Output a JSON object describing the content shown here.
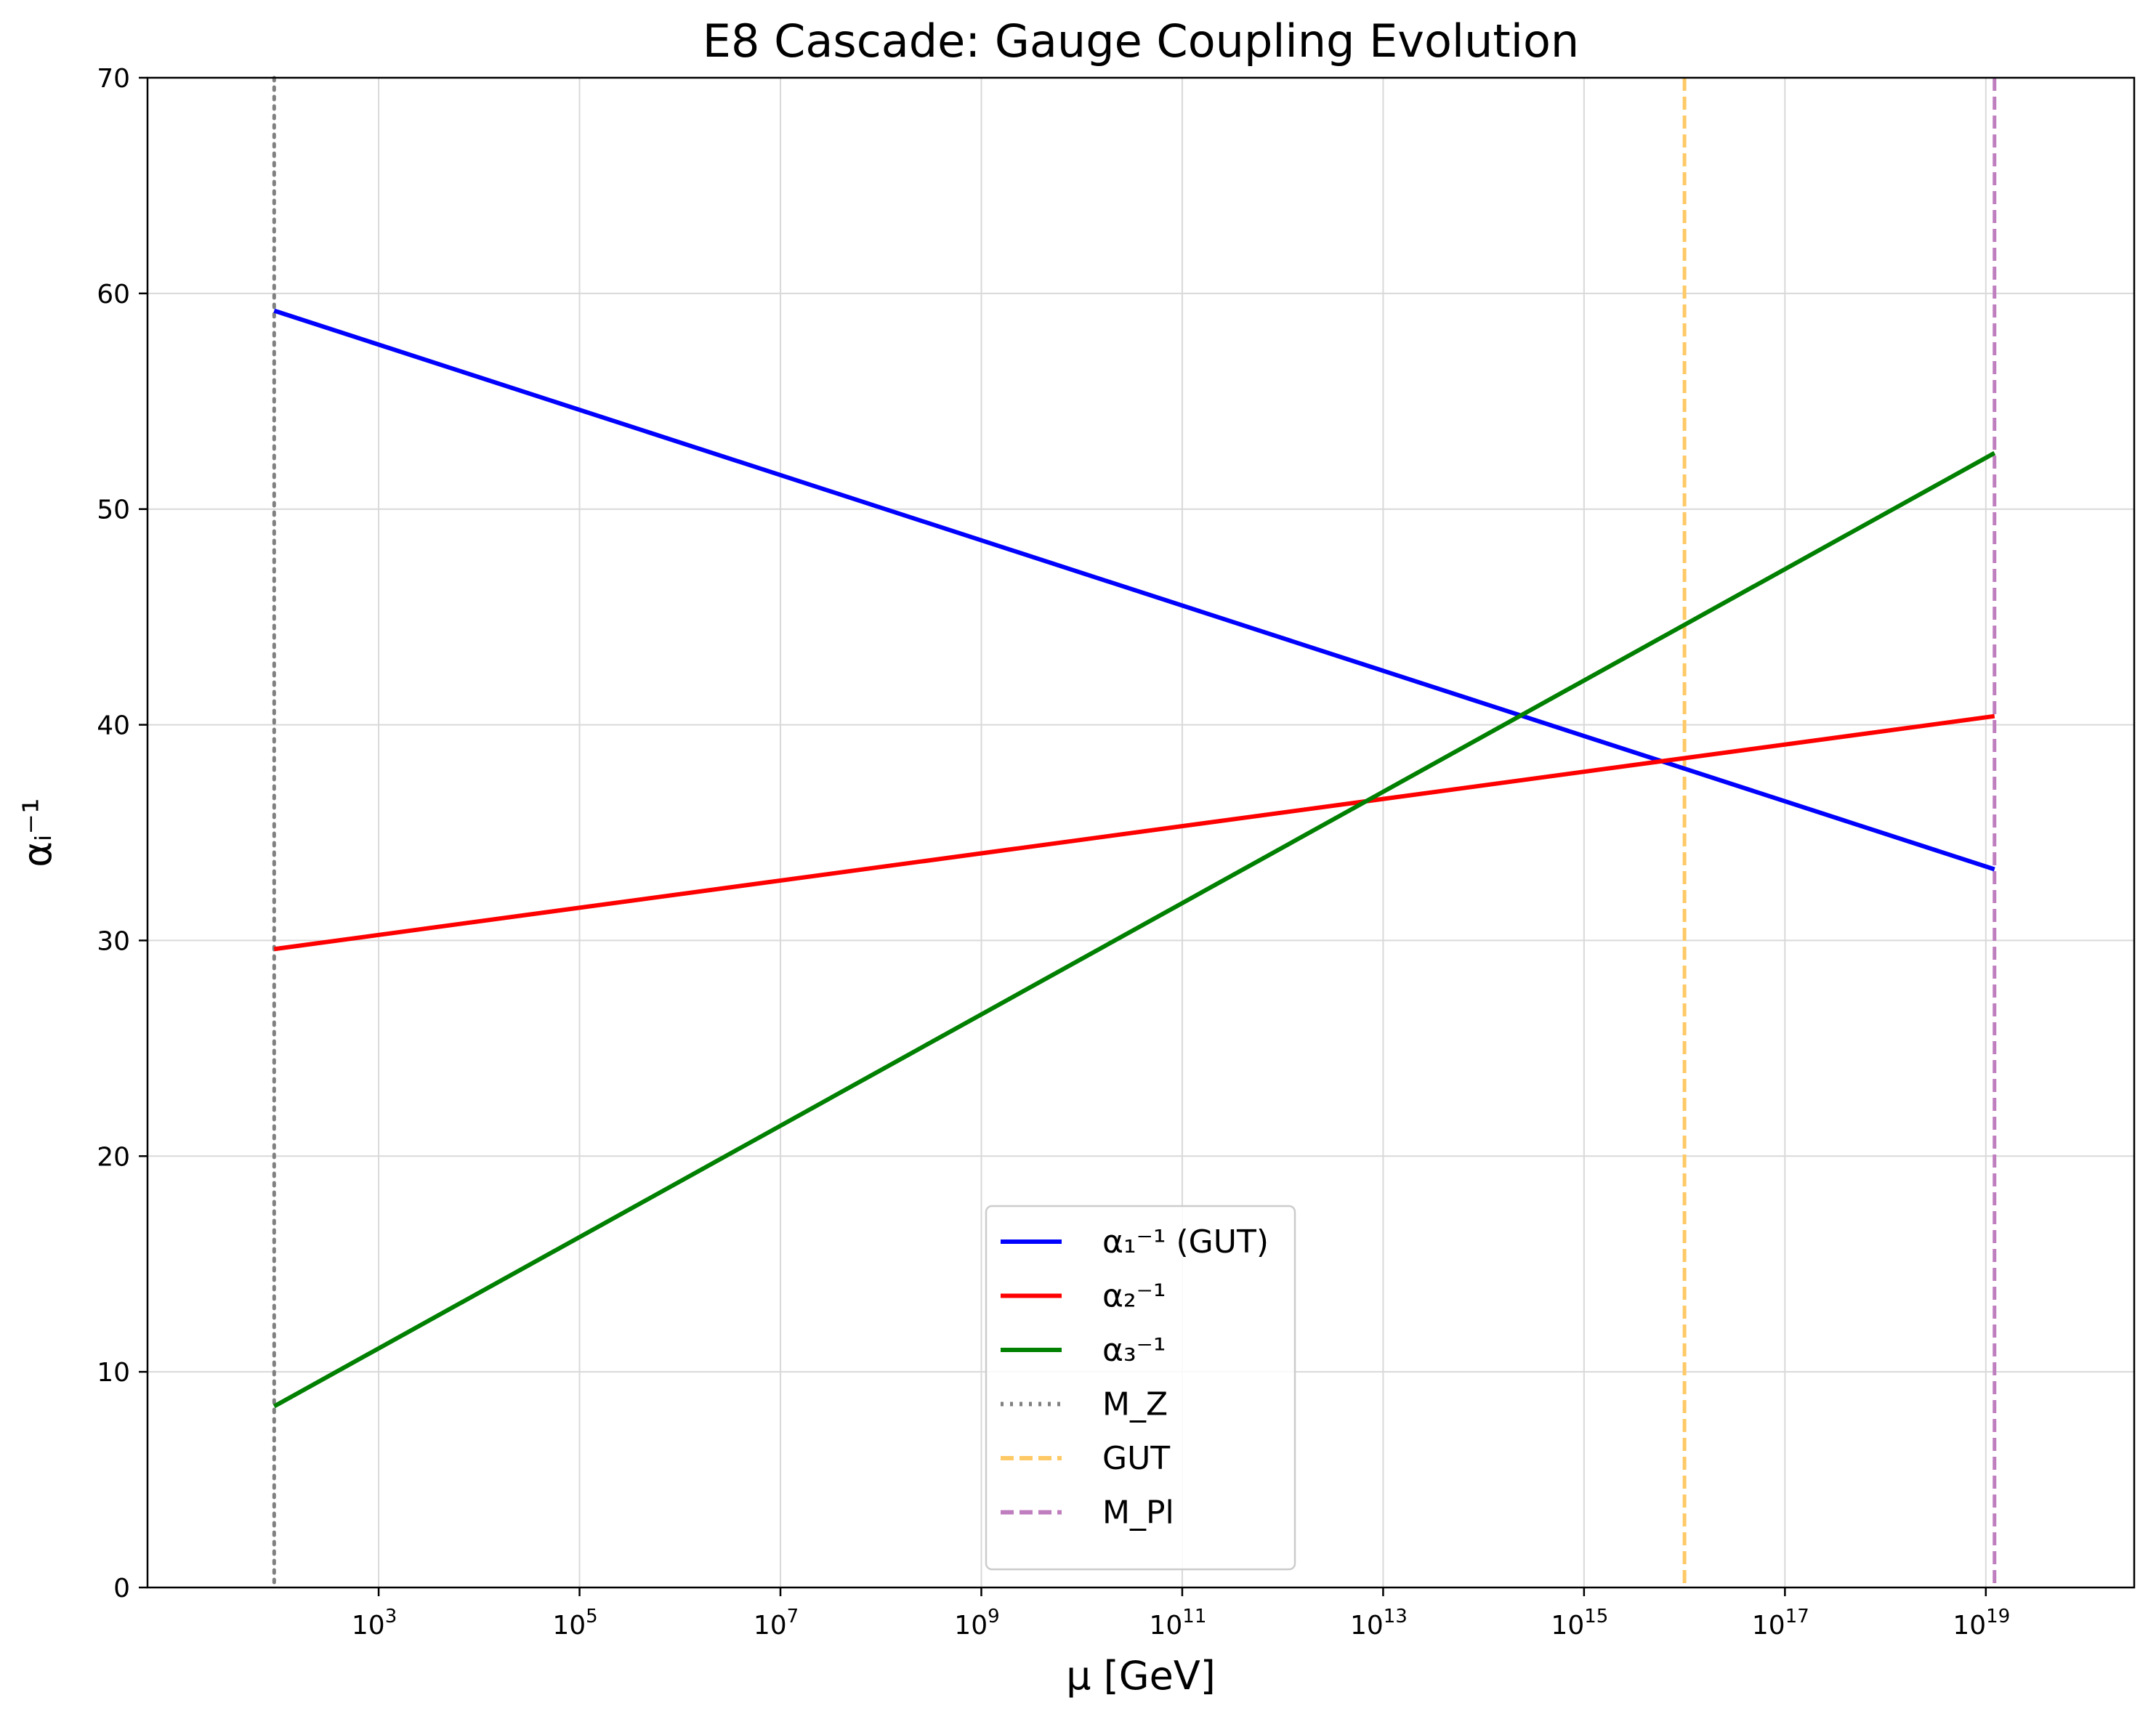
{
  "chart_data": {
    "type": "line",
    "title": "E8 Cascade: Gauge Coupling Evolution",
    "xlabel": "μ [GeV]",
    "ylabel": "αᵢ⁻¹",
    "x_scale": "log",
    "xlim": [
      5.0,
      3e+20
    ],
    "ylim": [
      0,
      70
    ],
    "x_ticks": [
      {
        "base": "10",
        "exp": "3"
      },
      {
        "base": "10",
        "exp": "5"
      },
      {
        "base": "10",
        "exp": "7"
      },
      {
        "base": "10",
        "exp": "9"
      },
      {
        "base": "10",
        "exp": "11"
      },
      {
        "base": "10",
        "exp": "13"
      },
      {
        "base": "10",
        "exp": "15"
      },
      {
        "base": "10",
        "exp": "17"
      },
      {
        "base": "10",
        "exp": "19"
      }
    ],
    "y_ticks": [
      "0",
      "10",
      "20",
      "30",
      "40",
      "50",
      "60",
      "70"
    ],
    "grid": true,
    "legend_position": "lower center",
    "series": [
      {
        "name": "α₁⁻¹ (GUT)",
        "color": "#0000ff",
        "style": "solid",
        "x": [
          91.19,
          1.22e+19
        ],
        "y": [
          59.2,
          33.3
        ]
      },
      {
        "name": "α₂⁻¹",
        "color": "#ff0000",
        "style": "solid",
        "x": [
          91.19,
          1.22e+19
        ],
        "y": [
          29.6,
          40.4
        ]
      },
      {
        "name": "α₃⁻¹",
        "color": "#008000",
        "style": "solid",
        "x": [
          91.19,
          1.22e+19
        ],
        "y": [
          8.4,
          52.6
        ]
      }
    ],
    "vlines": [
      {
        "name": "M_Z",
        "x": 91.19,
        "color": "#808080",
        "style": "dotted"
      },
      {
        "name": "GUT",
        "x": 1e+16,
        "color": "#ffc966",
        "style": "dashed"
      },
      {
        "name": "M_Pl",
        "x": 1.22e+19,
        "color": "#bf7fbf",
        "style": "dashed"
      }
    ]
  }
}
